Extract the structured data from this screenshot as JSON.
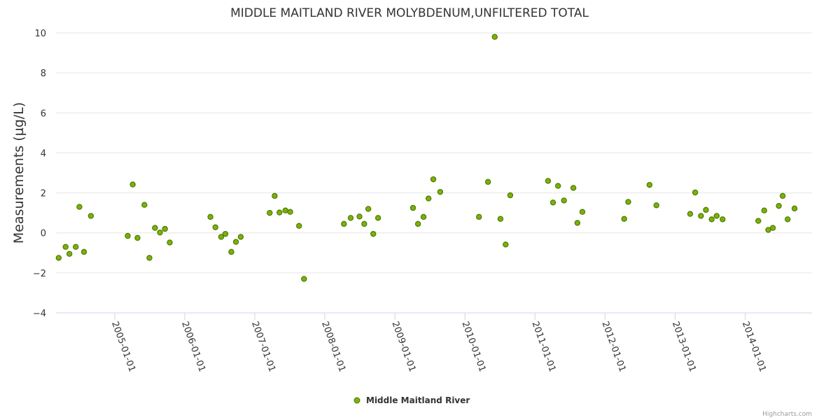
{
  "chart_data": {
    "type": "scatter",
    "title": "MIDDLE MAITLAND RIVER MOLYBDENUM,UNFILTERED TOTAL",
    "xlabel": "",
    "ylabel": "Measurements (µg/L)",
    "ylim": [
      -4,
      10
    ],
    "yticks": [
      -4,
      -2,
      0,
      2,
      4,
      6,
      8,
      10
    ],
    "ytick_labels": [
      "−4",
      "−2",
      "0",
      "2",
      "4",
      "6",
      "8",
      "10"
    ],
    "xlim": [
      "2004-03-01",
      "2014-12-15"
    ],
    "xticks": [
      "2005-01-01",
      "2006-01-01",
      "2007-01-01",
      "2008-01-01",
      "2009-01-01",
      "2010-01-01",
      "2011-01-01",
      "2012-01-01",
      "2013-01-01",
      "2014-01-01"
    ],
    "legend": "bottom-center",
    "colors": {
      "marker_fill": "#7cb10b",
      "marker_stroke": "#4d7a00",
      "grid": "#e6e6e6",
      "axis": "#ccd6eb"
    },
    "series": [
      {
        "name": "Middle Maitland River",
        "points": [
          {
            "x": "2004-03-15",
            "y": -1.25
          },
          {
            "x": "2004-04-20",
            "y": -0.7
          },
          {
            "x": "2004-05-10",
            "y": -1.05
          },
          {
            "x": "2004-06-12",
            "y": -0.7
          },
          {
            "x": "2004-07-01",
            "y": 1.3
          },
          {
            "x": "2004-07-25",
            "y": -0.95
          },
          {
            "x": "2004-08-30",
            "y": 0.85
          },
          {
            "x": "2005-03-10",
            "y": -0.15
          },
          {
            "x": "2005-04-05",
            "y": 2.42
          },
          {
            "x": "2005-04-30",
            "y": -0.25
          },
          {
            "x": "2005-06-05",
            "y": 1.4
          },
          {
            "x": "2005-07-01",
            "y": -1.25
          },
          {
            "x": "2005-07-30",
            "y": 0.25
          },
          {
            "x": "2005-08-25",
            "y": 0.02
          },
          {
            "x": "2005-09-20",
            "y": 0.2
          },
          {
            "x": "2005-10-15",
            "y": -0.48
          },
          {
            "x": "2006-05-15",
            "y": 0.8
          },
          {
            "x": "2006-06-10",
            "y": 0.28
          },
          {
            "x": "2006-07-10",
            "y": -0.2
          },
          {
            "x": "2006-08-01",
            "y": -0.05
          },
          {
            "x": "2006-09-01",
            "y": -0.95
          },
          {
            "x": "2006-09-25",
            "y": -0.45
          },
          {
            "x": "2006-10-20",
            "y": -0.2
          },
          {
            "x": "2007-03-20",
            "y": 1.0
          },
          {
            "x": "2007-04-15",
            "y": 1.85
          },
          {
            "x": "2007-05-10",
            "y": 1.02
          },
          {
            "x": "2007-06-10",
            "y": 1.12
          },
          {
            "x": "2007-07-05",
            "y": 1.05
          },
          {
            "x": "2007-08-20",
            "y": 0.35
          },
          {
            "x": "2007-09-15",
            "y": -2.3
          },
          {
            "x": "2008-04-10",
            "y": 0.45
          },
          {
            "x": "2008-05-15",
            "y": 0.75
          },
          {
            "x": "2008-06-30",
            "y": 0.82
          },
          {
            "x": "2008-07-25",
            "y": 0.45
          },
          {
            "x": "2008-08-15",
            "y": 1.2
          },
          {
            "x": "2008-09-10",
            "y": -0.05
          },
          {
            "x": "2008-10-05",
            "y": 0.75
          },
          {
            "x": "2009-04-05",
            "y": 1.25
          },
          {
            "x": "2009-05-01",
            "y": 0.45
          },
          {
            "x": "2009-05-30",
            "y": 0.8
          },
          {
            "x": "2009-06-25",
            "y": 1.72
          },
          {
            "x": "2009-07-20",
            "y": 2.68
          },
          {
            "x": "2009-08-25",
            "y": 2.05
          },
          {
            "x": "2010-03-15",
            "y": 0.8
          },
          {
            "x": "2010-05-01",
            "y": 2.55
          },
          {
            "x": "2010-06-05",
            "y": 9.8
          },
          {
            "x": "2010-07-05",
            "y": 0.7
          },
          {
            "x": "2010-08-01",
            "y": -0.58
          },
          {
            "x": "2010-08-25",
            "y": 1.88
          },
          {
            "x": "2011-03-10",
            "y": 2.6
          },
          {
            "x": "2011-04-05",
            "y": 1.52
          },
          {
            "x": "2011-05-01",
            "y": 2.35
          },
          {
            "x": "2011-06-01",
            "y": 1.62
          },
          {
            "x": "2011-07-20",
            "y": 2.25
          },
          {
            "x": "2011-08-10",
            "y": 0.5
          },
          {
            "x": "2011-09-05",
            "y": 1.05
          },
          {
            "x": "2012-04-10",
            "y": 0.7
          },
          {
            "x": "2012-05-01",
            "y": 1.55
          },
          {
            "x": "2012-08-20",
            "y": 2.4
          },
          {
            "x": "2012-09-25",
            "y": 1.38
          },
          {
            "x": "2013-03-20",
            "y": 0.95
          },
          {
            "x": "2013-04-15",
            "y": 2.02
          },
          {
            "x": "2013-05-15",
            "y": 0.85
          },
          {
            "x": "2013-06-10",
            "y": 1.15
          },
          {
            "x": "2013-07-10",
            "y": 0.68
          },
          {
            "x": "2013-08-05",
            "y": 0.85
          },
          {
            "x": "2013-09-05",
            "y": 0.68
          },
          {
            "x": "2014-03-10",
            "y": 0.6
          },
          {
            "x": "2014-04-10",
            "y": 1.12
          },
          {
            "x": "2014-05-01",
            "y": 0.15
          },
          {
            "x": "2014-05-25",
            "y": 0.25
          },
          {
            "x": "2014-06-25",
            "y": 1.35
          },
          {
            "x": "2014-07-15",
            "y": 1.85
          },
          {
            "x": "2014-08-10",
            "y": 0.68
          },
          {
            "x": "2014-09-15",
            "y": 1.22
          }
        ]
      }
    ]
  },
  "credits": "Highcharts.com"
}
